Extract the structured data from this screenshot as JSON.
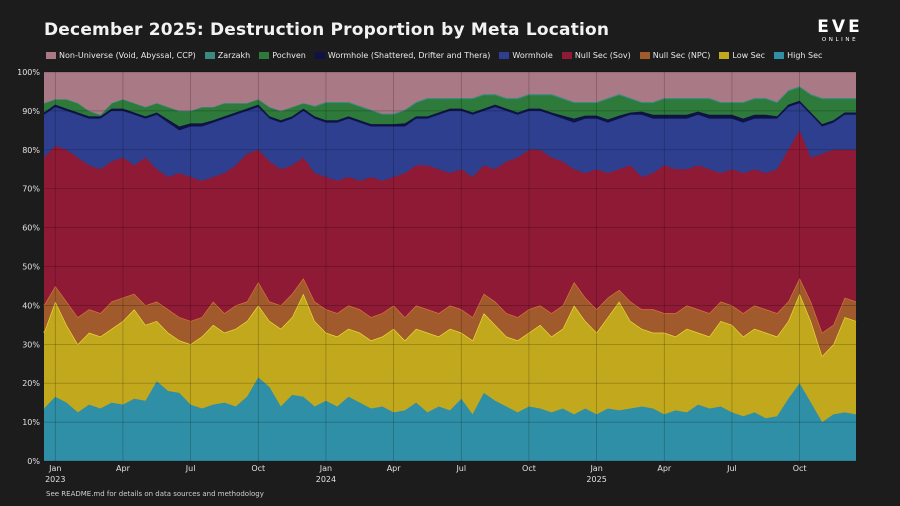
{
  "chart_data": {
    "type": "area",
    "stacked": true,
    "normalized": true,
    "title": "December 2025: Destruction Proportion by Meta Location",
    "xlabel": "",
    "ylabel": "",
    "ylim": [
      0,
      100
    ],
    "yticks": [
      "0%",
      "10%",
      "20%",
      "30%",
      "40%",
      "50%",
      "60%",
      "70%",
      "80%",
      "90%",
      "100%"
    ],
    "grid": true,
    "legend_position": "top",
    "x_range_months": [
      0,
      36
    ],
    "x_ticks": [
      {
        "month": 0.5,
        "label": "Jan",
        "sub": "2023"
      },
      {
        "month": 3.5,
        "label": "Apr",
        "sub": ""
      },
      {
        "month": 6.5,
        "label": "Jul",
        "sub": ""
      },
      {
        "month": 9.5,
        "label": "Oct",
        "sub": ""
      },
      {
        "month": 12.5,
        "label": "Jan",
        "sub": "2024"
      },
      {
        "month": 15.5,
        "label": "Apr",
        "sub": ""
      },
      {
        "month": 18.5,
        "label": "Jul",
        "sub": ""
      },
      {
        "month": 21.5,
        "label": "Oct",
        "sub": ""
      },
      {
        "month": 24.5,
        "label": "Jan",
        "sub": "2025"
      },
      {
        "month": 27.5,
        "label": "Apr",
        "sub": ""
      },
      {
        "month": 30.5,
        "label": "Jul",
        "sub": ""
      },
      {
        "month": 33.5,
        "label": "Oct",
        "sub": ""
      }
    ],
    "x": [
      0,
      0.5,
      1,
      1.5,
      2,
      2.5,
      3,
      3.5,
      4,
      4.5,
      5,
      5.5,
      6,
      6.5,
      7,
      7.5,
      8,
      8.5,
      9,
      9.5,
      10,
      10.5,
      11,
      11.5,
      12,
      12.5,
      13,
      13.5,
      14,
      14.5,
      15,
      15.5,
      16,
      16.5,
      17,
      17.5,
      18,
      18.5,
      19,
      19.5,
      20,
      20.5,
      21,
      21.5,
      22,
      22.5,
      23,
      23.5,
      24,
      24.5,
      25,
      25.5,
      26,
      26.5,
      27,
      27.5,
      28,
      28.5,
      29,
      29.5,
      30,
      30.5,
      31,
      31.5,
      32,
      32.5,
      33,
      33.5,
      34,
      34.5,
      35,
      35.5,
      36
    ],
    "series_boundaries_note": "cumulative top of each band in percent",
    "series": [
      {
        "name": "High Sec",
        "color": "#2f8fa6",
        "top": [
          13.5,
          16.5,
          15,
          12.5,
          14.5,
          13.5,
          15,
          14.5,
          16,
          15.5,
          20.5,
          18,
          17.5,
          14.5,
          13.5,
          14.5,
          15,
          14,
          16.5,
          21.5,
          19,
          14,
          17,
          16.5,
          14,
          15.5,
          14,
          16.5,
          15,
          13.5,
          14,
          12.5,
          13,
          15,
          12.5,
          14,
          13,
          16,
          12,
          17.5,
          15.5,
          14,
          12.5,
          14,
          13.5,
          12.5,
          13.5,
          12,
          13.5,
          12,
          13.5,
          13,
          13.5,
          14,
          13.5,
          12,
          13,
          12.5,
          14.5,
          13.5,
          14,
          12.5,
          11.5,
          12.5,
          11,
          11.5,
          16,
          20,
          15,
          10,
          12,
          12.5,
          12
        ]
      },
      {
        "name": "Low Sec",
        "color": "#c2a81d",
        "top": [
          33,
          41,
          35,
          30,
          33,
          32,
          34,
          36,
          39,
          35,
          36,
          33,
          31,
          30,
          32,
          35,
          33,
          34,
          36,
          40,
          36,
          34,
          37,
          43,
          36,
          33,
          32,
          34,
          33,
          31,
          32,
          34,
          31,
          34,
          33,
          32,
          34,
          33,
          31,
          38,
          35,
          32,
          31,
          33,
          35,
          32,
          34,
          40,
          36,
          33,
          37,
          41,
          36,
          34,
          33,
          33,
          32,
          34,
          33,
          32,
          36,
          35,
          32,
          34,
          33,
          32,
          36,
          43,
          36,
          27,
          30,
          37,
          36
        ]
      },
      {
        "name": "Null Sec (NPC)",
        "color": "#a05a2c",
        "top": [
          40,
          45,
          41,
          37,
          39,
          38,
          41,
          42,
          43,
          40,
          41,
          39,
          37,
          36,
          37,
          41,
          38,
          40,
          41,
          46,
          41,
          40,
          43,
          47,
          41,
          39,
          38,
          40,
          39,
          37,
          38,
          40,
          37,
          40,
          39,
          38,
          40,
          39,
          37,
          43,
          41,
          38,
          37,
          39,
          40,
          38,
          40,
          46,
          42,
          39,
          42,
          44,
          41,
          39,
          39,
          38,
          38,
          40,
          39,
          38,
          41,
          40,
          38,
          40,
          39,
          38,
          41,
          47,
          41,
          33,
          35,
          42,
          41
        ]
      },
      {
        "name": "Null Sec (Sov)",
        "color": "#8f1a36",
        "top": [
          78,
          81,
          80,
          78,
          76,
          75,
          77,
          78,
          76,
          78,
          75,
          73,
          74,
          73,
          72,
          73,
          74,
          76,
          79,
          80,
          77,
          75,
          76,
          78,
          74,
          73,
          72,
          73,
          72,
          73,
          72,
          73,
          74,
          76,
          76,
          75,
          74,
          75,
          73,
          76,
          75,
          77,
          78,
          80,
          80,
          78,
          77,
          75,
          74,
          75,
          74,
          75,
          76,
          73,
          74,
          76,
          75,
          75,
          76,
          75,
          74,
          75,
          74,
          75,
          74,
          75,
          80,
          85,
          78,
          79,
          80,
          80,
          80
        ]
      },
      {
        "name": "Wormhole",
        "color": "#2d3f8e",
        "top": [
          89,
          91,
          90,
          89,
          88,
          88,
          90,
          90,
          89,
          88,
          89,
          87,
          85,
          86,
          86,
          87,
          88,
          89,
          90,
          91,
          88,
          87,
          88,
          90,
          88,
          87,
          87,
          88,
          87,
          86,
          86,
          86,
          86,
          88,
          88,
          89,
          90,
          90,
          89,
          90,
          91,
          90,
          89,
          90,
          90,
          89,
          88,
          87,
          88,
          88,
          87,
          88,
          89,
          89,
          88,
          88,
          88,
          88,
          89,
          88,
          88,
          88,
          87,
          88,
          88,
          88,
          91,
          92,
          89,
          86,
          87,
          89,
          89
        ]
      },
      {
        "name": "Wormhole (Shattered, Drifter and Thera)",
        "color": "#101246",
        "top": [
          89.6,
          91.6,
          90.6,
          89.6,
          88.6,
          88.6,
          90.6,
          90.6,
          89.6,
          88.6,
          89.6,
          87.8,
          86,
          86.8,
          86.8,
          87.6,
          88.6,
          89.6,
          90.6,
          91.6,
          88.6,
          87.6,
          88.6,
          90.6,
          88.6,
          87.6,
          87.6,
          88.6,
          87.6,
          86.6,
          86.6,
          86.6,
          86.8,
          88.6,
          88.6,
          89.6,
          90.6,
          90.6,
          89.6,
          90.6,
          91.6,
          90.6,
          89.6,
          90.6,
          90.6,
          89.6,
          88.8,
          88,
          88.8,
          88.8,
          87.8,
          88.8,
          89.6,
          89.8,
          89,
          89,
          89,
          89,
          89.8,
          89,
          89,
          89,
          88,
          89,
          89,
          88.6,
          91.6,
          92.6,
          89.6,
          86.6,
          87.6,
          89.6,
          89.6
        ]
      },
      {
        "name": "Pochven",
        "color": "#2d7a3a",
        "top": [
          92,
          93,
          93,
          92,
          90,
          89,
          92,
          93,
          92,
          91,
          92,
          91,
          90,
          90,
          91,
          91,
          92,
          92,
          92,
          93,
          91,
          90,
          91,
          92,
          91,
          92,
          92,
          92,
          91,
          90,
          89,
          89,
          90,
          92,
          93,
          93,
          93,
          93,
          93,
          94,
          94,
          93,
          93,
          94,
          94,
          94,
          93,
          92,
          92,
          92,
          93,
          94,
          93,
          92,
          92,
          93,
          93,
          93,
          93,
          93,
          92,
          92,
          92,
          93,
          93,
          92,
          95,
          96,
          94,
          93,
          93,
          93,
          93
        ]
      },
      {
        "name": "Zarzakh",
        "color": "#3a8a80",
        "top": [
          92,
          93,
          93,
          92,
          90,
          89,
          92,
          93,
          92,
          91,
          92,
          91,
          90,
          90,
          91,
          91,
          92,
          92,
          92,
          93,
          91,
          90,
          91,
          92,
          91.3,
          92.3,
          92.3,
          92.3,
          91.3,
          90.3,
          89.3,
          89.3,
          90.3,
          92.3,
          93.3,
          93.3,
          93.3,
          93.3,
          93.3,
          94.3,
          94.3,
          93.3,
          93.3,
          94.3,
          94.3,
          94.3,
          93.3,
          92.3,
          92.3,
          92.3,
          93.3,
          94.3,
          93.3,
          92.3,
          92.3,
          93.3,
          93.3,
          93.3,
          93.3,
          93.3,
          92.3,
          92.3,
          92.3,
          93.3,
          93.3,
          92.3,
          95.3,
          96.3,
          94.3,
          93.3,
          93.3,
          93.3,
          93.3
        ]
      },
      {
        "name": "Non-Universe (Void, Abyssal, CCP)",
        "color": "#a97986",
        "top": [
          100,
          100,
          100,
          100,
          100,
          100,
          100,
          100,
          100,
          100,
          100,
          100,
          100,
          100,
          100,
          100,
          100,
          100,
          100,
          100,
          100,
          100,
          100,
          100,
          100,
          100,
          100,
          100,
          100,
          100,
          100,
          100,
          100,
          100,
          100,
          100,
          100,
          100,
          100,
          100,
          100,
          100,
          100,
          100,
          100,
          100,
          100,
          100,
          100,
          100,
          100,
          100,
          100,
          100,
          100,
          100,
          100,
          100,
          100,
          100,
          100,
          100,
          100,
          100,
          100,
          100,
          100,
          100,
          100,
          100,
          100,
          100,
          100
        ]
      }
    ],
    "legend": [
      {
        "name": "Non-Universe (Void, Abyssal, CCP)",
        "color": "#a97986"
      },
      {
        "name": "Zarzakh",
        "color": "#3a8a80"
      },
      {
        "name": "Pochven",
        "color": "#2d7a3a"
      },
      {
        "name": "Wormhole (Shattered, Drifter and Thera)",
        "color": "#101246"
      },
      {
        "name": "Wormhole",
        "color": "#2d3f8e"
      },
      {
        "name": "Null Sec (Sov)",
        "color": "#8f1a36"
      },
      {
        "name": "Null Sec (NPC)",
        "color": "#a05a2c"
      },
      {
        "name": "Low Sec",
        "color": "#c2a81d"
      },
      {
        "name": "High Sec",
        "color": "#2f8fa6"
      }
    ]
  },
  "logo": {
    "main": "EVE",
    "sub": "ONLINE"
  },
  "footnote": "See README.md for details on data sources and methodology"
}
